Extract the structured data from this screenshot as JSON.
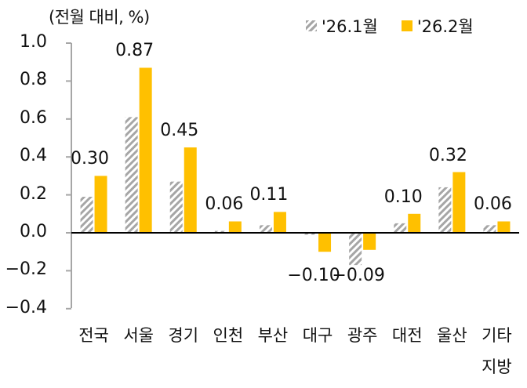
{
  "chart_data": {
    "type": "bar",
    "title": "",
    "unit_label": "(전월 대비, %)",
    "xlabel": "",
    "ylabel": "",
    "ylim": [
      -0.4,
      1.0
    ],
    "yticks": [
      "1.0",
      "0.8",
      "0.6",
      "0.4",
      "0.2",
      "0.0",
      "-0.2",
      "-0.4"
    ],
    "grid": false,
    "legend_position": "top-right",
    "categories": [
      "전국",
      "서울",
      "경기",
      "인천",
      "부산",
      "대구",
      "광주",
      "대전",
      "울산",
      "기타 지방"
    ],
    "series": [
      {
        "name": "'26.1월",
        "style": "hatched-gray",
        "color": "#a6a6a6",
        "values": [
          0.19,
          0.61,
          0.27,
          0.01,
          0.04,
          -0.01,
          -0.17,
          0.05,
          0.24,
          0.04
        ]
      },
      {
        "name": "'26.2월",
        "style": "solid",
        "color": "#ffc000",
        "values": [
          0.3,
          0.87,
          0.45,
          0.06,
          0.11,
          -0.1,
          -0.09,
          0.1,
          0.32,
          0.06
        ],
        "data_labels": [
          "0.30",
          "0.87",
          "0.45",
          "0.06",
          "0.11",
          "-0.10",
          "-0.09",
          "0.10",
          "0.32",
          "0.06"
        ]
      }
    ]
  }
}
